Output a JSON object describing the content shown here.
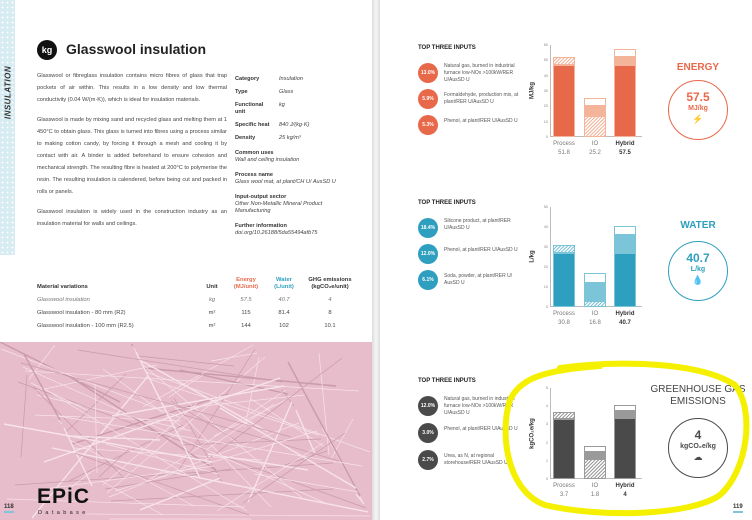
{
  "left_page": {
    "side_label": "INSULATION",
    "unit_badge": "kg",
    "title": "Glasswool insulation",
    "paragraphs": [
      "Glasswool or fibreglass insulation contains micro fibres of glass that trap pockets of air within. This results in a low density and low thermal conductivity (0.04 W/(m·K)), which is ideal for insulation materials.",
      "Glasswool is made by mixing sand and recycled glass and melting them at 1 450°C to obtain glass. This glass is turned into fibres using a process similar to making cotton candy, by forcing it through a mesh and cooling it by contact with air. A binder is added beforehand to ensure cohesion and mechanical strength. The resulting fibre is heated at 200°C to polymerise the resin. The resulting insulation is calendered, before being cut and packed in rolls or panels.",
      "Glasswool insulation is widely used in the construction industry as an insulation material for walls and ceilings."
    ],
    "properties": [
      {
        "k": "Category",
        "v": "Insulation"
      },
      {
        "k": "Type",
        "v": "Glass"
      },
      {
        "k": "Functional unit",
        "v": "kg"
      },
      {
        "k": "Specific heat",
        "v": "840 J/(kg·K)"
      },
      {
        "k": "Density",
        "v": "25 kg/m³"
      }
    ],
    "blocks": [
      {
        "h": "Common uses",
        "t": "Wall and ceiling insulation"
      },
      {
        "h": "Process name",
        "t": "Glass wool mat, at plant/CH U/ AusSD U"
      },
      {
        "h": "Input-output sector",
        "t": "Other Non-Metallic Mineral Product Manufacturing"
      },
      {
        "h": "Further information",
        "t": "doi.org/10.26188/5da55494afb75"
      }
    ],
    "table": {
      "headers": {
        "name": "Material variations",
        "unit": "Unit",
        "energy": "Energy",
        "energy_u": "(MJ/unit)",
        "water": "Water",
        "water_u": "(L/unit)",
        "ghg": "GHG emissions",
        "ghg_u": "(kgCO₂e/unit)"
      },
      "rows": [
        {
          "name": "Glasswool insulation",
          "unit": "kg",
          "energy": "57.5",
          "water": "40.7",
          "ghg": "4"
        },
        {
          "name": "Glasswool insulation - 80 mm (R2)",
          "unit": "m²",
          "energy": "115",
          "water": "81.4",
          "ghg": "8"
        },
        {
          "name": "Glasswool insulation - 100 mm (R2.5)",
          "unit": "m²",
          "energy": "144",
          "water": "102",
          "ghg": "10.1"
        }
      ]
    },
    "logo": "EPiC",
    "logo_sub": "Database",
    "page_number": "118"
  },
  "right_page": {
    "page_number": "119",
    "sections": [
      {
        "key": "energy",
        "heading": "TOP THREE INPUTS",
        "color": "#e8684a",
        "light": "#f4b49a",
        "inputs": [
          {
            "pct": "13.0%",
            "text": "Natural gas, burned in industrial furnace low-NOx >100kW/RER U/AusSD U"
          },
          {
            "pct": "5.9%",
            "text": "Formaldehyde, production mix, at plant/RER U/AusSD U"
          },
          {
            "pct": "5.3%",
            "text": "Phenol, at plant/RER U/AusSD U"
          }
        ],
        "title": "ENERGY",
        "value": "57.5",
        "unit": "MJ/kg",
        "icon": "lightning-icon"
      },
      {
        "key": "water",
        "heading": "TOP THREE INPUTS",
        "color": "#2f9fbf",
        "light": "#7cc4d8",
        "inputs": [
          {
            "pct": "18.4%",
            "text": "Silicone product, at plant/RER U/AusSD U"
          },
          {
            "pct": "12.0%",
            "text": "Phenol, at plant/RER U/AusSD U"
          },
          {
            "pct": "6.1%",
            "text": "Soda, powder, at plant/RER U/ AusSD U"
          }
        ],
        "title": "WATER",
        "value": "40.7",
        "unit": "L/kg",
        "icon": "water-drop-icon"
      },
      {
        "key": "ghg",
        "heading": "TOP THREE INPUTS",
        "color": "#4a4a4a",
        "light": "#9a9a9a",
        "inputs": [
          {
            "pct": "12.0%",
            "text": "Natural gas, burned in industrial furnace low-NOx >100kW/RER U/AusSD U"
          },
          {
            "pct": "3.0%",
            "text": "Phenol, at plant/RER U/AusSD U"
          },
          {
            "pct": "2.7%",
            "text": "Urea, as N, at regional storehouse/RER U/AusSD U"
          }
        ],
        "title": "GREENHOUSE GAS EMISSIONS",
        "value": "4",
        "unit": "kgCO₂e/kg",
        "icon": "cloud-factory-icon"
      }
    ]
  },
  "chart_data": [
    {
      "type": "bar",
      "stacked": true,
      "ylabel": "MJ/kg",
      "ylim": [
        0,
        60
      ],
      "ticks": [
        "0",
        "10",
        "20",
        "30",
        "40",
        "50",
        "60"
      ],
      "categories": [
        "Process",
        "IO",
        "Hybrid"
      ],
      "totals": [
        "51.8",
        "25.2",
        "57.5"
      ],
      "segments": [
        [
          {
            "v": 47,
            "s": "solid"
          },
          {
            "v": 5,
            "s": "hatch"
          }
        ],
        [
          {
            "v": 14,
            "s": "hatch"
          },
          {
            "v": 6,
            "s": "light"
          },
          {
            "v": 5.2,
            "s": "white"
          }
        ],
        [
          {
            "v": 47,
            "s": "solid"
          },
          {
            "v": 5,
            "s": "light"
          },
          {
            "v": 5.5,
            "s": "white"
          }
        ]
      ]
    },
    {
      "type": "bar",
      "stacked": true,
      "ylabel": "L/kg",
      "ylim": [
        0,
        50
      ],
      "ticks": [
        "0",
        "10",
        "20",
        "30",
        "40",
        "50"
      ],
      "categories": [
        "Process",
        "IO",
        "Hybrid"
      ],
      "totals": [
        "30.8",
        "16.8",
        "40.7"
      ],
      "segments": [
        [
          {
            "v": 27,
            "s": "solid"
          },
          {
            "v": 3.8,
            "s": "hatch"
          }
        ],
        [
          {
            "v": 3,
            "s": "hatch"
          },
          {
            "v": 9,
            "s": "light"
          },
          {
            "v": 4.8,
            "s": "white"
          }
        ],
        [
          {
            "v": 27,
            "s": "solid"
          },
          {
            "v": 9,
            "s": "light"
          },
          {
            "v": 4.7,
            "s": "white"
          }
        ]
      ]
    },
    {
      "type": "bar",
      "stacked": true,
      "ylabel": "kgCO₂e/kg",
      "ylim": [
        0,
        5
      ],
      "ticks": [
        "0",
        "1",
        "2",
        "3",
        "4",
        "5"
      ],
      "categories": [
        "Process",
        "IO",
        "Hybrid"
      ],
      "totals": [
        "3.7",
        "1.8",
        "4"
      ],
      "segments": [
        [
          {
            "v": 3.3,
            "s": "solid"
          },
          {
            "v": 0.4,
            "s": "hatch"
          }
        ],
        [
          {
            "v": 1.1,
            "s": "hatch"
          },
          {
            "v": 0.4,
            "s": "light"
          },
          {
            "v": 0.3,
            "s": "white"
          }
        ],
        [
          {
            "v": 3.35,
            "s": "solid"
          },
          {
            "v": 0.4,
            "s": "light"
          },
          {
            "v": 0.3,
            "s": "white"
          }
        ]
      ]
    }
  ]
}
